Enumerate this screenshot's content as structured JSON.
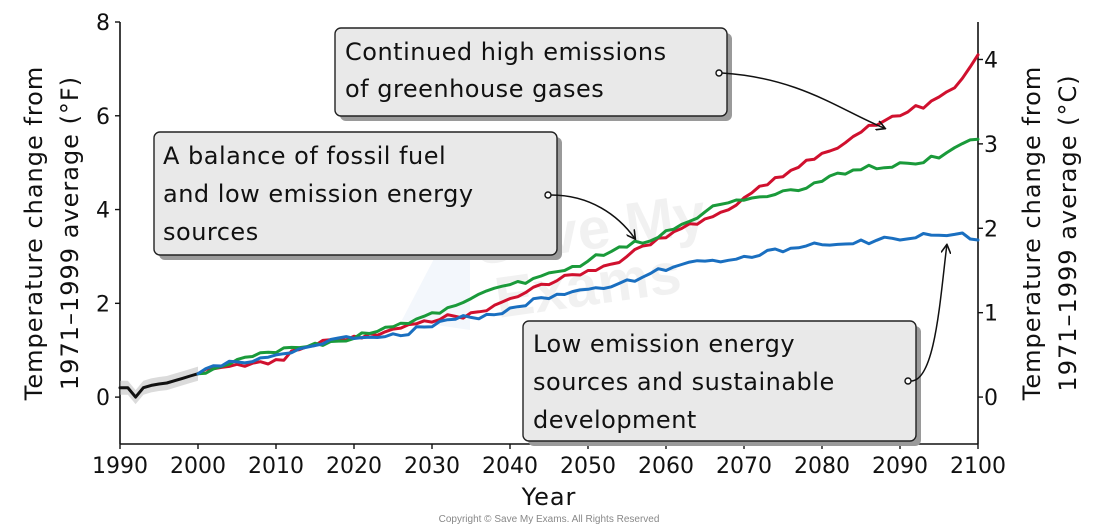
{
  "chart_data": {
    "type": "line",
    "xlabel": "Year",
    "ylabel_left": "Temperature change from 1971–1999 average (°F)",
    "ylabel_left_lines": [
      "Temperature change from",
      "1971–1999 average (°F)"
    ],
    "ylabel_right": "Temperature change from 1971–1999 average (°C)",
    "ylabel_right_lines": [
      "Temperature change from",
      "1971–1999 average (°C)"
    ],
    "xlim": [
      1990,
      2100
    ],
    "ylim_left": [
      -1,
      8
    ],
    "ylim_right_c": [
      -0.556,
      4.444
    ],
    "x_ticks": [
      1990,
      2000,
      2010,
      2020,
      2030,
      2040,
      2050,
      2060,
      2070,
      2080,
      2090,
      2100
    ],
    "y_ticks_left": [
      0,
      2,
      4,
      6,
      8
    ],
    "y_ticks_right": [
      0,
      1,
      2,
      3,
      4
    ],
    "grid": false,
    "series": [
      {
        "color": "#111111",
        "x": [
          1990,
          1991,
          1992,
          1993,
          1994,
          1995,
          1996,
          1997,
          1998,
          1999,
          2000
        ],
        "values": [
          0.2,
          0.2,
          0.0,
          0.2,
          0.25,
          0.28,
          0.3,
          0.35,
          0.4,
          0.45,
          0.5
        ]
      },
      {
        "color": "#d0102e",
        "x": [
          2000,
          2005,
          2010,
          2015,
          2020,
          2025,
          2030,
          2035,
          2040,
          2045,
          2050,
          2055,
          2060,
          2065,
          2070,
          2075,
          2080,
          2085,
          2090,
          2095,
          2098,
          2100
        ],
        "values": [
          0.5,
          0.7,
          0.8,
          1.1,
          1.3,
          1.45,
          1.6,
          1.8,
          2.1,
          2.4,
          2.7,
          3.0,
          3.4,
          3.8,
          4.25,
          4.7,
          5.2,
          5.65,
          6.0,
          6.4,
          6.8,
          7.3
        ]
      },
      {
        "color": "#1a9a3a",
        "x": [
          2000,
          2005,
          2010,
          2015,
          2020,
          2025,
          2030,
          2035,
          2040,
          2045,
          2050,
          2055,
          2060,
          2065,
          2070,
          2075,
          2080,
          2085,
          2090,
          2095,
          2100
        ],
        "values": [
          0.5,
          0.8,
          0.95,
          1.15,
          1.25,
          1.5,
          1.8,
          2.1,
          2.4,
          2.65,
          2.9,
          3.2,
          3.55,
          3.95,
          4.2,
          4.4,
          4.6,
          4.85,
          5.0,
          5.1,
          5.5
        ]
      },
      {
        "color": "#1a6fc0",
        "x": [
          2000,
          2005,
          2010,
          2015,
          2020,
          2025,
          2030,
          2035,
          2040,
          2045,
          2050,
          2055,
          2060,
          2065,
          2070,
          2075,
          2080,
          2085,
          2090,
          2095,
          2098,
          2100
        ],
        "values": [
          0.5,
          0.75,
          0.9,
          1.1,
          1.25,
          1.35,
          1.5,
          1.7,
          1.9,
          2.1,
          2.3,
          2.5,
          2.7,
          2.9,
          3.0,
          3.1,
          3.25,
          3.35,
          3.35,
          3.45,
          3.5,
          3.35
        ]
      }
    ],
    "annotations": [
      {
        "lines": [
          "Continued high emissions",
          "of greenhouse gases"
        ],
        "target": {
          "x": 2088,
          "y": 5.65
        }
      },
      {
        "lines": [
          "A balance of fossil fuel",
          "and low emission  energy",
          "sources"
        ],
        "target": {
          "x": 2056,
          "y": 3.3
        }
      },
      {
        "lines": [
          "Low emission energy",
          "sources and sustainable",
          "development"
        ],
        "target": {
          "x": 2096,
          "y": 3.45
        }
      }
    ]
  },
  "watermark": {
    "line1": "Save My",
    "line2": "Exams"
  },
  "copyright": "Copyright © Save My Exams. All Rights Reserved"
}
